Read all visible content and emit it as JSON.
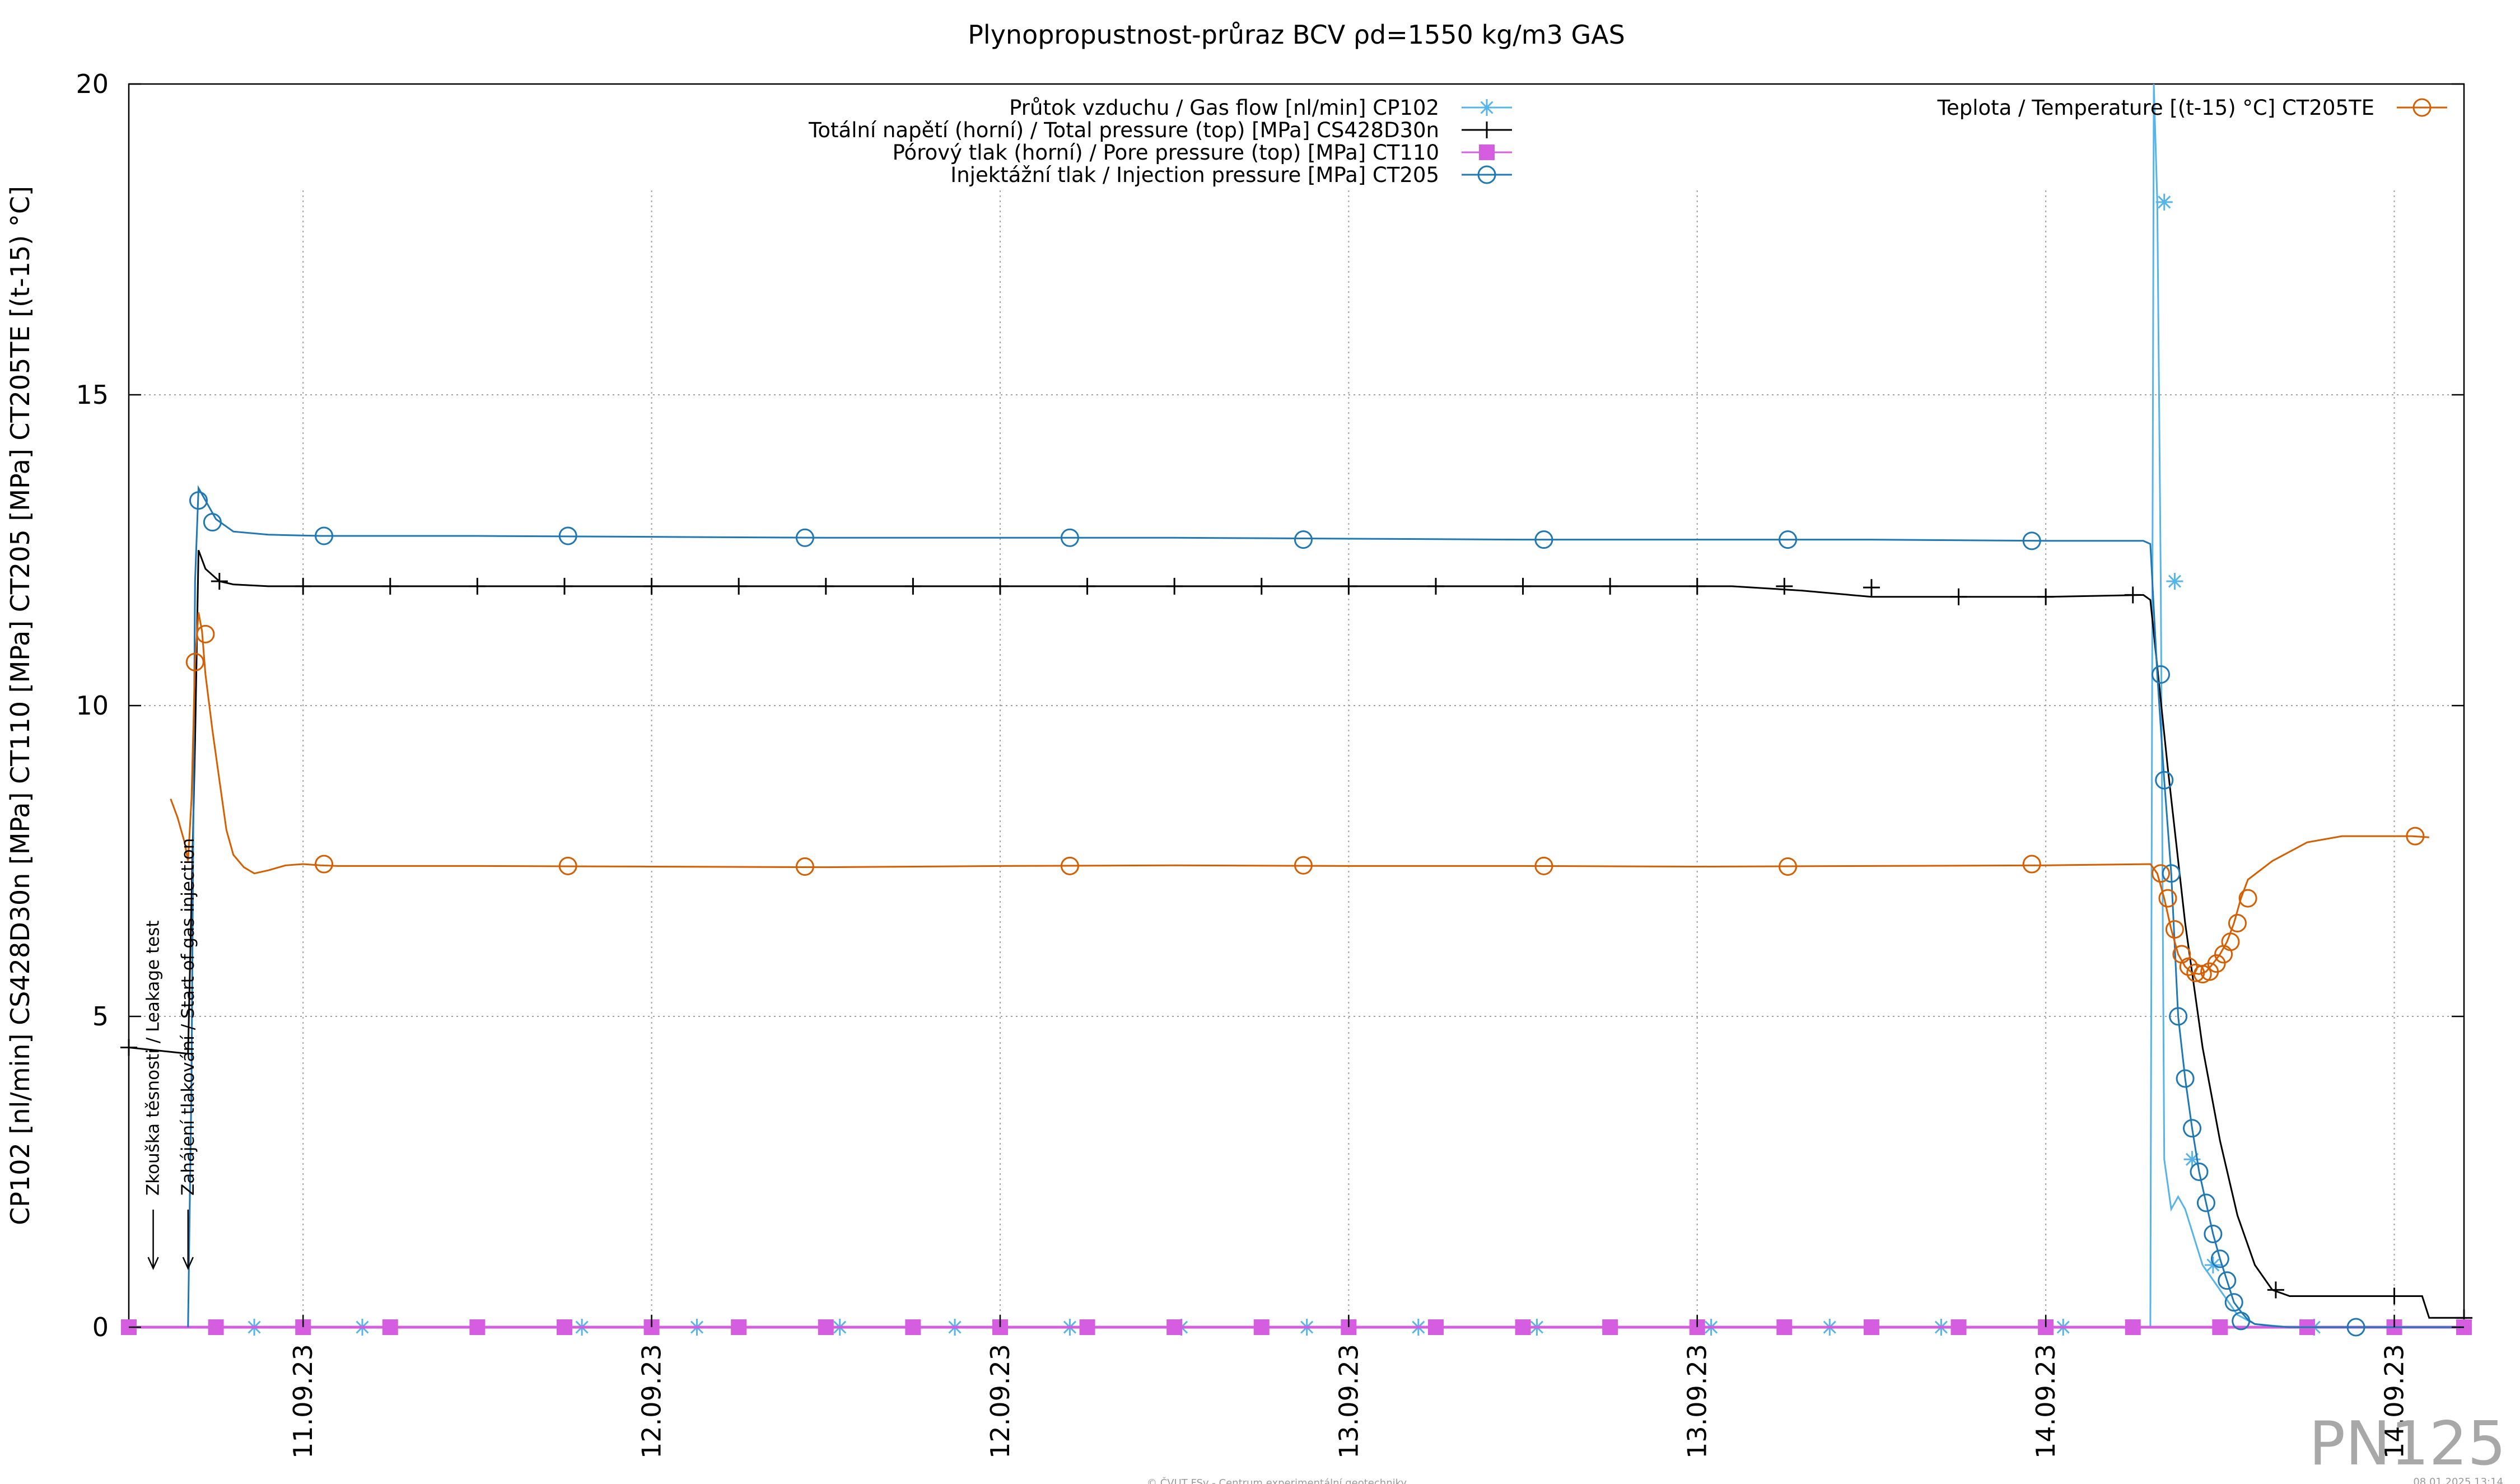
{
  "chart_data": {
    "type": "line",
    "title": "Plynopropustnost-průraz BCV ρd=1550 kg/m3 GAS",
    "ylabel": "CP102 [nl/min] CS428D30n [MPa] CT110 [MPa] CT205 [MPa] CT205TE [(t-15) °C]",
    "xlabel": "",
    "ylim": [
      0,
      20
    ],
    "xlim": [
      0,
      6.7
    ],
    "grid": true,
    "legend_placement": "top-center and top-right",
    "yticks": [
      "0",
      "5",
      "10",
      "15",
      "20"
    ],
    "ytick_values": [
      0,
      5,
      10,
      15,
      20
    ],
    "xticks": [
      "11.09.23",
      "12.09.23",
      "12.09.23",
      "13.09.23",
      "13.09.23",
      "14.09.23",
      "14.09.23"
    ],
    "xtick_positions": [
      0.5,
      1.5,
      2.5,
      3.5,
      4.5,
      5.5,
      6.5
    ],
    "series": [
      {
        "name": "Průtok vzduchu / Gas flow [nl/min] CP102",
        "color": "#56b4e9",
        "marker": "asterisk",
        "x": [
          0,
          0.16,
          0.18,
          0.4,
          1.0,
          2.0,
          3.0,
          4.0,
          5.0,
          5.5,
          5.8,
          5.81,
          5.82,
          5.83,
          5.84,
          5.86,
          5.88,
          5.9,
          5.95,
          6.0,
          6.05,
          6.1,
          6.2,
          6.4,
          6.6,
          6.7
        ],
        "y": [
          0,
          0,
          0,
          0,
          0,
          0,
          0,
          0,
          0,
          0,
          0,
          20,
          18.1,
          12.0,
          2.7,
          1.9,
          2.1,
          1.9,
          1.0,
          0.6,
          0.2,
          0.05,
          0,
          0,
          0,
          0
        ],
        "marker_x": [
          0.36,
          0.67,
          1.3,
          1.63,
          2.04,
          2.37,
          2.7,
          3.02,
          3.38,
          3.7,
          4.04,
          4.54,
          4.88,
          5.2,
          5.55,
          5.84,
          5.87,
          5.92,
          5.98,
          6.27
        ],
        "marker_y": [
          0,
          0,
          0,
          0,
          0,
          0,
          0,
          0,
          0,
          0,
          0,
          0,
          0,
          0,
          0,
          18.1,
          12.0,
          2.7,
          1.0,
          0
        ]
      },
      {
        "name": "Totální napětí (horní) / Total pressure (top) [MPa] CS428D30n",
        "color": "#000000",
        "marker": "plus",
        "x": [
          0,
          0.17,
          0.19,
          0.2,
          0.22,
          0.26,
          0.3,
          0.4,
          1.0,
          2.0,
          3.0,
          4.0,
          4.6,
          4.8,
          5.0,
          5.2,
          5.5,
          5.78,
          5.8,
          5.85,
          5.9,
          5.95,
          6.0,
          6.05,
          6.1,
          6.15,
          6.2,
          6.5,
          6.58,
          6.6,
          6.7
        ],
        "y": [
          4.5,
          4.4,
          9.4,
          12.5,
          12.2,
          12.0,
          11.95,
          11.92,
          11.92,
          11.92,
          11.92,
          11.92,
          11.92,
          11.85,
          11.75,
          11.75,
          11.75,
          11.78,
          11.7,
          9.0,
          6.5,
          4.5,
          3.0,
          1.8,
          1.0,
          0.6,
          0.5,
          0.5,
          0.5,
          0.15,
          0.15
        ],
        "marker_x": [
          0.0,
          0.26,
          0.5,
          0.75,
          1.0,
          1.25,
          1.5,
          1.75,
          2.0,
          2.25,
          2.5,
          2.75,
          3.0,
          3.25,
          3.5,
          3.75,
          4.0,
          4.25,
          4.5,
          4.75,
          5.0,
          5.25,
          5.5,
          5.75,
          6.16,
          6.5,
          6.7
        ],
        "marker_y": [
          4.5,
          12.0,
          11.92,
          11.92,
          11.92,
          11.92,
          11.92,
          11.92,
          11.92,
          11.92,
          11.92,
          11.92,
          11.92,
          11.92,
          11.92,
          11.92,
          11.92,
          11.92,
          11.92,
          11.92,
          11.9,
          11.75,
          11.75,
          11.78,
          0.6,
          0.5,
          0.15
        ]
      },
      {
        "name": "Pórový tlak (horní) / Pore pressure (top) [MPa] CT110",
        "color": "#d55ee0",
        "marker": "square",
        "x": [
          0,
          6.7
        ],
        "y": [
          0,
          0
        ],
        "marker_x": [
          0.0,
          0.25,
          0.5,
          0.75,
          1.0,
          1.25,
          1.5,
          1.75,
          2.0,
          2.25,
          2.5,
          2.75,
          3.0,
          3.25,
          3.5,
          3.75,
          4.0,
          4.25,
          4.5,
          4.75,
          5.0,
          5.25,
          5.5,
          5.75,
          6.0,
          6.25,
          6.5,
          6.7
        ],
        "marker_y": [
          0,
          0,
          0,
          0,
          0,
          0,
          0,
          0,
          0,
          0,
          0,
          0,
          0,
          0,
          0,
          0,
          0,
          0,
          0,
          0,
          0,
          0,
          0,
          0,
          0,
          0,
          0,
          0
        ]
      },
      {
        "name": "Injektážní tlak / Injection pressure [MPa] CT205",
        "color": "#1f78b4",
        "marker": "circle",
        "x": [
          0.17,
          0.18,
          0.19,
          0.2,
          0.22,
          0.25,
          0.3,
          0.4,
          0.55,
          1.0,
          2.0,
          3.0,
          4.0,
          5.0,
          5.5,
          5.78,
          5.8,
          5.82,
          5.84,
          5.86,
          5.88,
          5.9,
          5.92,
          5.94,
          5.96,
          5.98,
          6.0,
          6.02,
          6.04,
          6.06,
          6.08,
          6.1,
          6.15,
          6.2,
          6.3,
          6.5,
          6.7
        ],
        "y": [
          0,
          4.0,
          12.0,
          13.5,
          13.3,
          13.0,
          12.8,
          12.75,
          12.73,
          12.73,
          12.7,
          12.7,
          12.67,
          12.67,
          12.65,
          12.65,
          12.6,
          10.5,
          8.8,
          7.3,
          5.0,
          4.0,
          3.2,
          2.5,
          2.0,
          1.5,
          1.1,
          0.75,
          0.4,
          0.25,
          0.12,
          0.05,
          0.02,
          0,
          0,
          0,
          0
        ],
        "marker_x": [
          0.2,
          0.24,
          0.56,
          1.26,
          1.94,
          2.7,
          3.37,
          4.06,
          4.76,
          5.46,
          5.83,
          5.84,
          5.86,
          5.88,
          5.9,
          5.92,
          5.94,
          5.96,
          5.98,
          6.0,
          6.02,
          6.04,
          6.06,
          6.39
        ],
        "marker_y": [
          13.3,
          12.95,
          12.73,
          12.73,
          12.7,
          12.7,
          12.67,
          12.67,
          12.67,
          12.65,
          10.5,
          8.8,
          7.3,
          5.0,
          4.0,
          3.2,
          2.5,
          2.0,
          1.5,
          1.1,
          0.75,
          0.4,
          0.1,
          0
        ]
      },
      {
        "name": "Teplota / Temperature [(t-15) °C] CT205TE",
        "color": "#d55e00",
        "marker": "circle",
        "x": [
          0.12,
          0.14,
          0.16,
          0.17,
          0.18,
          0.19,
          0.2,
          0.21,
          0.22,
          0.24,
          0.26,
          0.28,
          0.3,
          0.33,
          0.36,
          0.4,
          0.45,
          0.5,
          0.55,
          0.6,
          1.0,
          1.5,
          2.0,
          2.5,
          3.0,
          3.5,
          4.0,
          4.5,
          5.0,
          5.5,
          5.8,
          5.82,
          5.84,
          5.86,
          5.88,
          5.9,
          5.92,
          5.94,
          5.96,
          5.98,
          6.0,
          6.02,
          6.04,
          6.06,
          6.08,
          6.15,
          6.25,
          6.35,
          6.45,
          6.55,
          6.6
        ],
        "y": [
          8.5,
          8.2,
          7.8,
          7.5,
          8.5,
          10.7,
          11.5,
          11.2,
          10.5,
          9.6,
          8.8,
          8.0,
          7.6,
          7.4,
          7.3,
          7.35,
          7.43,
          7.45,
          7.43,
          7.42,
          7.42,
          7.41,
          7.4,
          7.42,
          7.43,
          7.42,
          7.42,
          7.41,
          7.42,
          7.43,
          7.45,
          7.3,
          6.9,
          6.4,
          6.0,
          5.8,
          5.7,
          5.68,
          5.72,
          5.85,
          6.0,
          6.2,
          6.5,
          6.9,
          7.2,
          7.5,
          7.8,
          7.9,
          7.9,
          7.9,
          7.88
        ],
        "marker_x": [
          0.19,
          0.22,
          0.56,
          1.26,
          1.94,
          2.7,
          3.37,
          4.06,
          4.76,
          5.46,
          5.83,
          5.85,
          5.87,
          5.89,
          5.91,
          5.93,
          5.95,
          5.97,
          5.99,
          6.01,
          6.03,
          6.05,
          6.08,
          6.56
        ],
        "marker_y": [
          10.7,
          11.15,
          7.45,
          7.42,
          7.41,
          7.42,
          7.43,
          7.42,
          7.41,
          7.45,
          7.3,
          6.9,
          6.4,
          6.0,
          5.8,
          5.7,
          5.68,
          5.72,
          5.85,
          6.0,
          6.2,
          6.5,
          6.9,
          7.9
        ]
      }
    ],
    "annotations": [
      {
        "text": "Zkouška těsnosti / Leakage test",
        "x": 0.07
      },
      {
        "text": "Zahájení tlakování / Start of gas injection",
        "x": 0.17
      }
    ]
  },
  "watermark": "PN125",
  "footer_center": "© ČVUT FSv - Centrum experimentální geotechniky",
  "footer_right": "08.01.2025 13:14"
}
